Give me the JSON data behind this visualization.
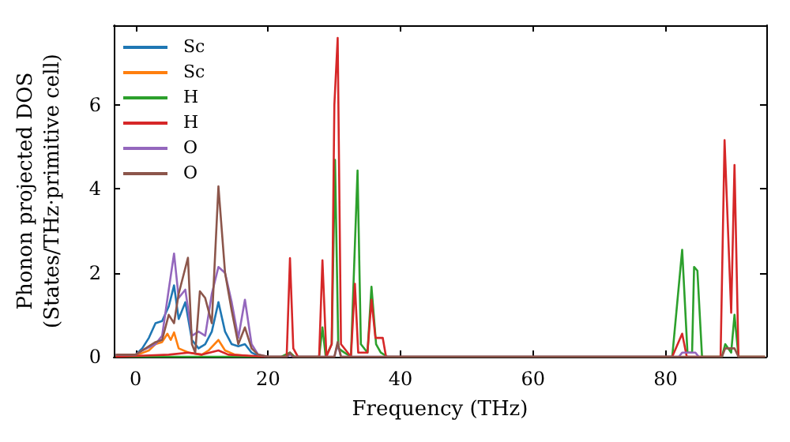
{
  "chart_data": {
    "type": "line",
    "xlabel": "Frequency (THz)",
    "ylabel": "Phonon projected DOS\n(States/THz·primitive cell)",
    "xlim": [
      -3.3,
      95.2
    ],
    "xticks": [
      0,
      20,
      40,
      60,
      80
    ],
    "ylim": [
      0,
      7.9
    ],
    "yticks": [
      0,
      2,
      4,
      6
    ],
    "grid": false,
    "legend": "top left",
    "marker": "none",
    "line_style": "solid",
    "series": [
      {
        "name": "Sc",
        "color": "#1f77b4",
        "x": [
          -3,
          0,
          1,
          2,
          3,
          4,
          5,
          5.8,
          6.5,
          7.5,
          8.5,
          9.5,
          10.5,
          11.5,
          12.5,
          13.5,
          14.5,
          15.5,
          16.5,
          17.5,
          18.5,
          20
        ],
        "values": [
          0.03,
          0.05,
          0.2,
          0.45,
          0.8,
          0.85,
          1.2,
          1.7,
          0.9,
          1.3,
          0.4,
          0.2,
          0.3,
          0.6,
          1.3,
          0.6,
          0.3,
          0.25,
          0.3,
          0.1,
          0.02,
          0
        ]
      },
      {
        "name": "Sc",
        "color": "#ff7f0e",
        "x": [
          -3,
          0,
          2,
          3,
          4,
          4.8,
          5.3,
          5.8,
          6.5,
          8,
          10,
          11,
          12.5,
          13.5,
          15,
          17,
          20
        ],
        "values": [
          0.02,
          0.03,
          0.15,
          0.3,
          0.35,
          0.55,
          0.4,
          0.58,
          0.2,
          0.1,
          0.05,
          0.15,
          0.4,
          0.15,
          0.05,
          0.02,
          0
        ]
      },
      {
        "name": "H",
        "color": "#2ca02c",
        "x": [
          -3,
          22,
          23.3,
          24,
          27.7,
          28.2,
          28.7,
          29.6,
          30.1,
          30.6,
          31.5,
          32.5,
          33.5,
          34,
          35,
          35.6,
          36.3,
          37,
          38,
          81,
          82.5,
          83.3,
          84,
          84.3,
          84.8,
          85.5,
          88.5,
          89,
          89.9,
          90.4,
          91,
          95
        ],
        "values": [
          0,
          0,
          0.1,
          0,
          0,
          0.7,
          0,
          0.3,
          4.69,
          0.2,
          0.1,
          0,
          4.44,
          0.3,
          0.1,
          1.67,
          0.3,
          0.1,
          0,
          0,
          2.55,
          0.1,
          0.1,
          2.14,
          2.05,
          0,
          0,
          0.3,
          0.1,
          1.0,
          0,
          0
        ]
      },
      {
        "name": "H",
        "color": "#d62728",
        "x": [
          -3,
          0,
          5,
          8,
          10,
          12.5,
          14,
          20,
          22.8,
          23.3,
          23.8,
          24.5,
          27.7,
          28.2,
          28.8,
          29.6,
          30,
          30.5,
          31,
          32.5,
          33.1,
          33.6,
          35,
          35.6,
          36.2,
          37.3,
          37.8,
          81,
          82.5,
          83.2,
          88.3,
          88.9,
          89.9,
          90.4,
          91,
          95
        ],
        "values": [
          0,
          0.02,
          0.05,
          0.1,
          0.05,
          0.15,
          0.05,
          0,
          0,
          2.35,
          0.2,
          0,
          0,
          2.3,
          0,
          0.3,
          6,
          7.6,
          0.3,
          0,
          1.74,
          0.1,
          0.1,
          1.36,
          0.45,
          0.45,
          0,
          0,
          0.55,
          0,
          0,
          5.16,
          1.05,
          4.57,
          0,
          0
        ]
      },
      {
        "name": "O",
        "color": "#9467bd",
        "x": [
          -3,
          0,
          1,
          3,
          4,
          5,
          5.8,
          6.5,
          7.5,
          8.5,
          9.5,
          10.5,
          11.5,
          12.5,
          13.5,
          14.5,
          15.5,
          16.5,
          17.5,
          18.5,
          20,
          22.8,
          23.3,
          23.8,
          30,
          30.5,
          31,
          82,
          82.5,
          84.5,
          85
        ],
        "values": [
          0.05,
          0.05,
          0.15,
          0.3,
          0.5,
          1.6,
          2.46,
          1.4,
          1.6,
          0.5,
          0.6,
          0.5,
          1.5,
          2.14,
          2.0,
          1.3,
          0.45,
          1.36,
          0.3,
          0.05,
          0,
          0,
          0.05,
          0,
          0,
          0.3,
          0,
          0,
          0.1,
          0.1,
          0
        ]
      },
      {
        "name": "O",
        "color": "#8c564b",
        "x": [
          -3,
          0,
          1,
          3,
          4,
          5,
          5.8,
          6.5,
          7.9,
          8.5,
          9,
          9.7,
          10.5,
          11.5,
          12.5,
          13.5,
          14.5,
          15.5,
          16.5,
          17.5,
          18.5,
          20,
          22.8,
          23.3,
          23.8,
          30,
          30.5,
          31,
          88.5,
          89,
          90.4,
          91,
          95
        ],
        "values": [
          0.05,
          0.05,
          0.15,
          0.35,
          0.4,
          1.0,
          0.8,
          1.5,
          2.36,
          0.3,
          0.1,
          1.56,
          1.4,
          0.8,
          4.06,
          2.0,
          1.1,
          0.3,
          0.7,
          0.2,
          0.05,
          0,
          0,
          0.1,
          0,
          0,
          0.35,
          0,
          0,
          0.2,
          0.2,
          0,
          0
        ]
      }
    ]
  }
}
